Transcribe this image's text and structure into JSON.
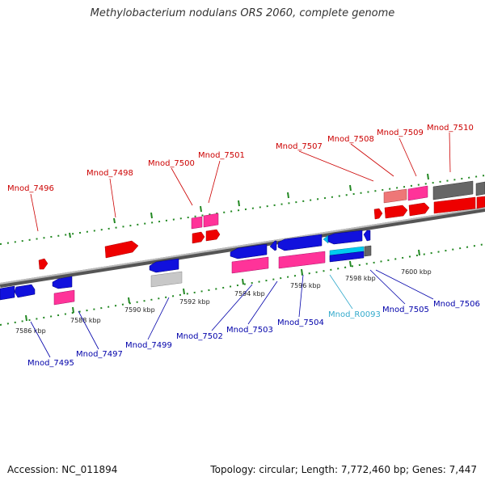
{
  "title": "Methylobacterium nodulans ORS 2060, complete genome",
  "accession": "Accession: NC_011894",
  "stats": "Topology: circular; Length: 7,772,460 bp; Genes: 7,447",
  "colors": {
    "forward_cds": "#ee0000",
    "forward_pseudo": "#ff3399",
    "reverse_cds": "#1111dd",
    "rna": "#00bbee",
    "other": "#777777",
    "label_forward": "#cc0000",
    "label_reverse": "#0000aa",
    "label_rna": "#33aacc",
    "tick": "#228822"
  },
  "scale_labels": [
    "7586 kbp",
    "7588 kbp",
    "7590 kbp",
    "7592 kbp",
    "7594 kbp",
    "7596 kbp",
    "7598 kbp",
    "7600 kbp"
  ],
  "forward_labels": [
    "Mnod_7496",
    "Mnod_7498",
    "Mnod_7500",
    "Mnod_7501",
    "Mnod_7507",
    "Mnod_7508",
    "Mnod_7509",
    "Mnod_7510"
  ],
  "reverse_labels": [
    "Mnod_7495",
    "Mnod_7497",
    "Mnod_7499",
    "Mnod_7502",
    "Mnod_7503",
    "Mnod_7504",
    "Mnod_R0093",
    "Mnod_7505",
    "Mnod_7506"
  ]
}
